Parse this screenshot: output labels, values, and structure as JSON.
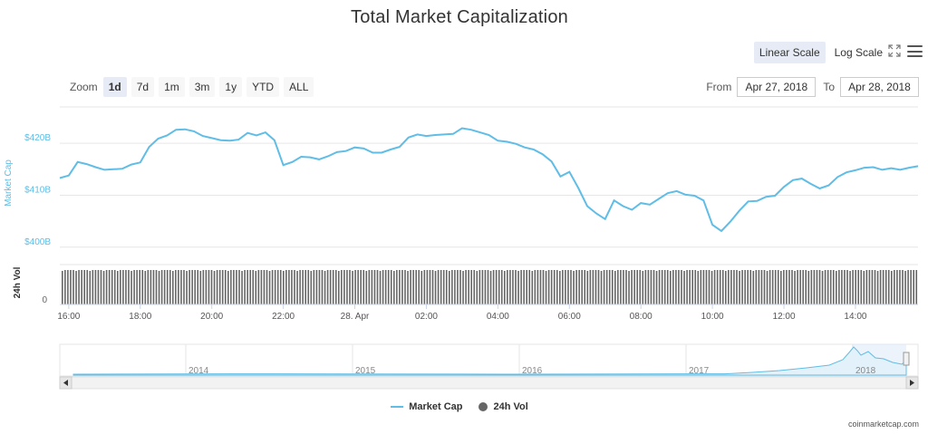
{
  "title": "Total Market Capitalization",
  "scale": {
    "linear_label": "Linear Scale",
    "log_label": "Log Scale",
    "active": "linear"
  },
  "zoom": {
    "label": "Zoom",
    "buttons": [
      "1d",
      "7d",
      "1m",
      "3m",
      "1y",
      "YTD",
      "ALL"
    ],
    "active": "1d"
  },
  "range": {
    "from_label": "From",
    "from_value": "Apr 27, 2018",
    "to_label": "To",
    "to_value": "Apr 28, 2018"
  },
  "credit": "coinmarketcap.com",
  "colors": {
    "market_cap": "#5fbde6",
    "volume": "#666666",
    "selected_button": "#e6ebf5"
  },
  "icons": {
    "fullscreen": "expand-icon",
    "menu": "hamburger-menu-icon"
  },
  "chart_data": {
    "type": "line",
    "title": "Total Market Capitalization",
    "ylabel": "Market Cap",
    "ylabel_volume": "24h Vol",
    "y_ticks": [
      "$420B",
      "$410B",
      "$400B"
    ],
    "y_tick_values": [
      420,
      410,
      400
    ],
    "volume_ticks": [
      "0"
    ],
    "ylim": [
      397,
      427
    ],
    "x_ticks": [
      "16:00",
      "18:00",
      "20:00",
      "22:00",
      "28. Apr",
      "02:00",
      "04:00",
      "06:00",
      "08:00",
      "10:00",
      "12:00",
      "14:00"
    ],
    "xlim_hours": [
      15.75,
      39.75
    ],
    "grid": true,
    "legend_position": "bottom-center",
    "series": [
      {
        "name": "Market Cap",
        "unit": "billion USD",
        "x_hours": [
          15.75,
          16.0,
          16.25,
          16.5,
          16.75,
          17.0,
          17.25,
          17.5,
          17.75,
          18.0,
          18.25,
          18.5,
          18.75,
          19.0,
          19.25,
          19.5,
          19.75,
          20.0,
          20.25,
          20.5,
          20.75,
          21.0,
          21.25,
          21.5,
          21.75,
          22.0,
          22.25,
          22.5,
          22.75,
          23.0,
          23.25,
          23.5,
          23.75,
          24.0,
          24.25,
          24.5,
          24.75,
          25.0,
          25.25,
          25.5,
          25.75,
          26.0,
          26.25,
          26.5,
          26.75,
          27.0,
          27.25,
          27.5,
          27.75,
          28.0,
          28.25,
          28.5,
          28.75,
          29.0,
          29.25,
          29.5,
          29.75,
          30.0,
          30.25,
          30.5,
          30.75,
          31.0,
          31.25,
          31.5,
          31.75,
          32.0,
          32.25,
          32.5,
          32.75,
          33.0,
          33.25,
          33.5,
          33.75,
          34.0,
          34.25,
          34.5,
          34.75,
          35.0,
          35.25,
          35.5,
          35.75,
          36.0,
          36.25,
          36.5,
          36.75,
          37.0,
          37.25,
          37.5,
          37.75,
          38.0,
          38.25,
          38.5,
          38.75,
          39.0,
          39.25,
          39.5,
          39.75
        ],
        "values": [
          413.3,
          413.8,
          416.4,
          416.0,
          415.4,
          414.9,
          415.0,
          415.1,
          415.9,
          416.3,
          419.3,
          420.9,
          421.5,
          422.6,
          422.7,
          422.3,
          421.4,
          421.0,
          420.6,
          420.5,
          420.7,
          422.0,
          421.5,
          422.1,
          420.6,
          415.8,
          416.4,
          417.4,
          417.3,
          416.9,
          417.5,
          418.3,
          418.5,
          419.2,
          419.0,
          418.2,
          418.2,
          418.8,
          419.3,
          421.1,
          421.7,
          421.4,
          421.6,
          421.7,
          421.8,
          422.9,
          422.6,
          422.1,
          421.6,
          420.5,
          420.3,
          419.9,
          419.2,
          418.8,
          417.9,
          416.5,
          413.6,
          414.5,
          411.4,
          407.9,
          406.5,
          405.4,
          409.0,
          407.9,
          407.2,
          408.5,
          408.2,
          409.3,
          410.4,
          410.8,
          410.1,
          409.9,
          409.0,
          404.3,
          403.1,
          404.9,
          407.0,
          408.8,
          408.9,
          409.7,
          409.9,
          411.6,
          412.9,
          413.2,
          412.2,
          411.3,
          411.9,
          413.5,
          414.4,
          414.8,
          415.3,
          415.4,
          414.9,
          415.2,
          414.9,
          415.3,
          415.6
        ]
      },
      {
        "name": "24h Vol",
        "style": "bars",
        "note": "dense uniform bars, nearly constant height"
      }
    ],
    "navigator": {
      "x_labels": [
        "2014",
        "2015",
        "2016",
        "2017",
        "2018"
      ],
      "series": "Market Cap (all time)"
    }
  },
  "legend": [
    {
      "label": "Market Cap",
      "kind": "line"
    },
    {
      "label": "24h Vol",
      "kind": "dot"
    }
  ]
}
